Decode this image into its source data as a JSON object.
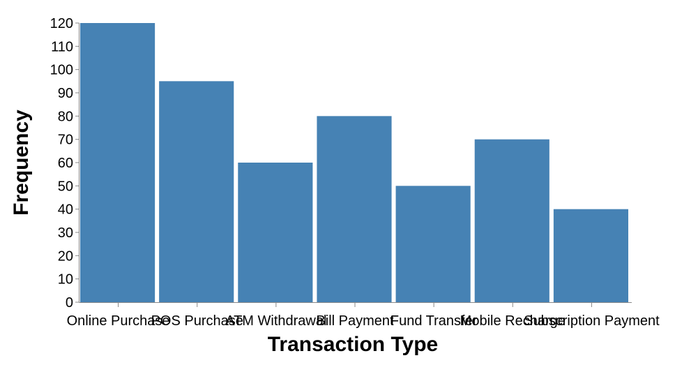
{
  "chart_data": {
    "type": "bar",
    "categories": [
      "Online Purchase",
      "POS Purchase",
      "ATM Withdrawal",
      "Bill Payment",
      "Fund Transfer",
      "Mobile Recharge",
      "Subscription Payment"
    ],
    "values": [
      120,
      95,
      60,
      80,
      50,
      70,
      40
    ],
    "xlabel": "Transaction Type",
    "ylabel": "Frequency",
    "ylim": [
      0,
      120
    ],
    "yticks": [
      0,
      10,
      20,
      30,
      40,
      50,
      60,
      70,
      80,
      90,
      100,
      110,
      120
    ],
    "grid": false,
    "legend": "none",
    "colors": {
      "bar": "#4682b4",
      "axis": "#888888",
      "text": "#000000"
    }
  }
}
